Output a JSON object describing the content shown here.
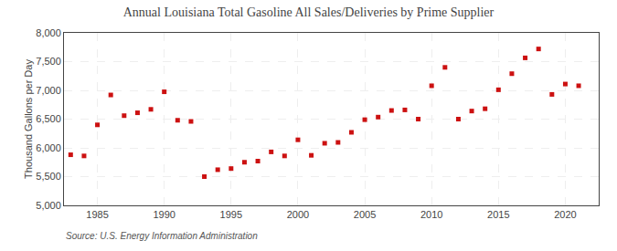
{
  "chart_data": {
    "type": "scatter",
    "title": "Annual Louisiana Total Gasoline All Sales/Deliveries by Prime Supplier",
    "ylabel": "Thousand Gallons per Day",
    "annotations": [
      "Source: U.S. Energy Information Administration"
    ],
    "x": [
      1983,
      1984,
      1985,
      1986,
      1987,
      1988,
      1989,
      1990,
      1991,
      1992,
      1993,
      1994,
      1995,
      1996,
      1997,
      1998,
      1999,
      2000,
      2001,
      2002,
      2003,
      2004,
      2005,
      2006,
      2007,
      2008,
      2009,
      2010,
      2011,
      2012,
      2013,
      2014,
      2015,
      2016,
      2017,
      2018,
      2019,
      2020,
      2021
    ],
    "values": [
      5880,
      5860,
      6400,
      6920,
      6560,
      6610,
      6670,
      6975,
      6480,
      6460,
      5500,
      5620,
      5640,
      5750,
      5770,
      5930,
      5860,
      6140,
      5870,
      6080,
      6095,
      6270,
      6490,
      6535,
      6650,
      6660,
      6500,
      7080,
      7400,
      6500,
      6640,
      6680,
      7010,
      7290,
      7565,
      7720,
      6930,
      7110,
      7080
    ],
    "color": "#cc1111",
    "marker": "square",
    "xlim": [
      1982.5,
      2022.5
    ],
    "xticks": [
      1985,
      1990,
      1995,
      2000,
      2005,
      2010,
      2015,
      2020
    ],
    "ylim": [
      5000,
      8000
    ],
    "yticks": [
      {
        "value": 5000,
        "label": "5,000"
      },
      {
        "value": 5500,
        "label": "5,500"
      },
      {
        "value": 6000,
        "label": "6,000"
      },
      {
        "value": 6500,
        "label": "6,500"
      },
      {
        "value": 7000,
        "label": "7,000"
      },
      {
        "value": 7500,
        "label": "7,500"
      },
      {
        "value": 8000,
        "label": "8,000"
      }
    ],
    "grid": true
  }
}
